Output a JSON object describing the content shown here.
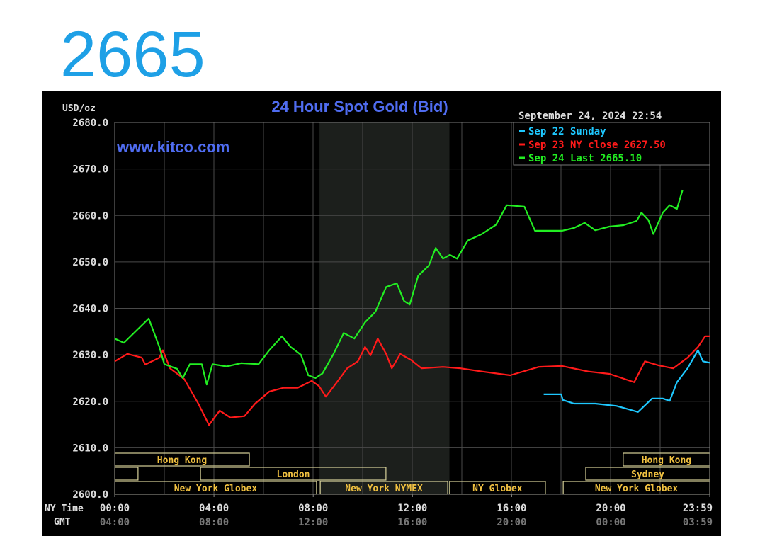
{
  "headline": "2665",
  "chart_data": {
    "type": "line",
    "title": "24 Hour Spot Gold (Bid)",
    "watermark": "www.kitco.com",
    "timestamp": "September 24, 2024 22:54",
    "y_unit_label": "USD/oz",
    "x_label": "NY Time",
    "x2_label": "GMT",
    "xlim": [
      0,
      23.983
    ],
    "ylim": [
      2600,
      2680
    ],
    "grid": true,
    "xticks": [
      {
        "value": 0,
        "label": "00:00"
      },
      {
        "value": 4,
        "label": "04:00"
      },
      {
        "value": 8,
        "label": "08:00"
      },
      {
        "value": 12,
        "label": "12:00"
      },
      {
        "value": 16,
        "label": "16:00"
      },
      {
        "value": 20,
        "label": "20:00"
      },
      {
        "value": 23.983,
        "label": "23:59"
      }
    ],
    "x2ticks": [
      {
        "value": 0,
        "label": "04:00"
      },
      {
        "value": 4,
        "label": "08:00"
      },
      {
        "value": 8,
        "label": "12:00"
      },
      {
        "value": 12,
        "label": "16:00"
      },
      {
        "value": 16,
        "label": "20:00"
      },
      {
        "value": 20,
        "label": "00:00"
      },
      {
        "value": 23.983,
        "label": "03:59"
      }
    ],
    "yticks": [
      {
        "value": 2600,
        "label": "2600.0"
      },
      {
        "value": 2610,
        "label": "2610.0"
      },
      {
        "value": 2620,
        "label": "2620.0"
      },
      {
        "value": 2630,
        "label": "2630.0"
      },
      {
        "value": 2640,
        "label": "2640.0"
      },
      {
        "value": 2650,
        "label": "2650.0"
      },
      {
        "value": 2660,
        "label": "2660.0"
      },
      {
        "value": 2670,
        "label": "2670.0"
      },
      {
        "value": 2680,
        "label": "2680.0"
      }
    ],
    "series": [
      {
        "name": "Sep 22 Sunday",
        "color": "#1ec8ff",
        "x": [
          17.29,
          18.0,
          18.06,
          18.51,
          19.37,
          20.23,
          21.09,
          21.66,
          22.09,
          22.37,
          22.66,
          23.09,
          23.51,
          23.71,
          23.98
        ],
        "values": [
          2621.5,
          2621.5,
          2620.3,
          2619.5,
          2619.5,
          2619,
          2617.7,
          2620.6,
          2620.6,
          2620.1,
          2624.1,
          2627.1,
          2631,
          2628.6,
          2628.3
        ]
      },
      {
        "name": "Sep 23 NY close 2627.50",
        "color": "#ff1a1a",
        "x": [
          0,
          0.51,
          1.09,
          1.23,
          1.8,
          1.94,
          2.23,
          2.8,
          3.37,
          3.8,
          4.23,
          4.66,
          5.23,
          5.66,
          6.23,
          6.8,
          7.37,
          7.94,
          8.23,
          8.51,
          8.94,
          9.37,
          9.8,
          10.09,
          10.31,
          10.6,
          10.94,
          11.17,
          11.51,
          11.94,
          12.37,
          13.23,
          13.94,
          14.8,
          15.94,
          17.09,
          18.03,
          19.09,
          19.94,
          20.94,
          21.37,
          21.94,
          22.51,
          23.09,
          23.51,
          23.8,
          23.98
        ],
        "values": [
          2628.6,
          2630.2,
          2629.4,
          2627.9,
          2629.4,
          2631,
          2627.1,
          2624.8,
          2619.5,
          2614.9,
          2618,
          2616.5,
          2616.8,
          2619.5,
          2622.1,
          2622.9,
          2622.9,
          2624.4,
          2623.3,
          2621,
          2624,
          2627.1,
          2628.6,
          2631.7,
          2629.9,
          2633.5,
          2630.2,
          2627.1,
          2630.2,
          2628.9,
          2627.1,
          2627.4,
          2627.1,
          2626.4,
          2625.6,
          2627.4,
          2627.6,
          2626.4,
          2625.9,
          2624.1,
          2628.6,
          2627.7,
          2627.1,
          2629.4,
          2631.7,
          2634,
          2634
        ]
      },
      {
        "name": "Sep 24 Last 2665.10",
        "color": "#22ee22",
        "x": [
          0,
          0.37,
          1.37,
          1.8,
          2,
          2.51,
          2.74,
          3.03,
          3.51,
          3.71,
          3.94,
          4.51,
          5.09,
          5.8,
          6.23,
          6.74,
          7.09,
          7.51,
          7.8,
          8.09,
          8.37,
          8.8,
          9.23,
          9.66,
          10.09,
          10.51,
          10.94,
          11.37,
          11.66,
          11.89,
          12.23,
          12.66,
          12.94,
          13.23,
          13.51,
          13.8,
          14.23,
          14.8,
          15.37,
          15.8,
          16.51,
          16.94,
          18.03,
          18.51,
          18.94,
          19.37,
          19.94,
          20.51,
          21.03,
          21.23,
          21.51,
          21.71,
          22.09,
          22.37,
          22.66,
          22.89
        ],
        "values": [
          2633.5,
          2632.6,
          2637.8,
          2631.7,
          2628,
          2627,
          2625,
          2628,
          2628,
          2623.6,
          2628,
          2627.5,
          2628.2,
          2628,
          2631,
          2634,
          2631.7,
          2630,
          2625.6,
          2625,
          2626,
          2630,
          2634.7,
          2633.5,
          2637,
          2639.3,
          2644.6,
          2645.4,
          2641.6,
          2640.8,
          2647,
          2649.2,
          2653,
          2650.7,
          2651.5,
          2650.7,
          2654.6,
          2656,
          2658,
          2662.2,
          2661.9,
          2656.7,
          2656.7,
          2657.3,
          2658.4,
          2656.8,
          2657.6,
          2657.9,
          2658.8,
          2660.6,
          2659,
          2656,
          2660.6,
          2662.2,
          2661.4,
          2665.5
        ]
      }
    ],
    "sessions": [
      "Hong Kong",
      "Hong Kong",
      "London",
      "Sydney",
      "New York Globex",
      "New York NYMEX",
      "NY Globex",
      "New York Globex"
    ]
  }
}
